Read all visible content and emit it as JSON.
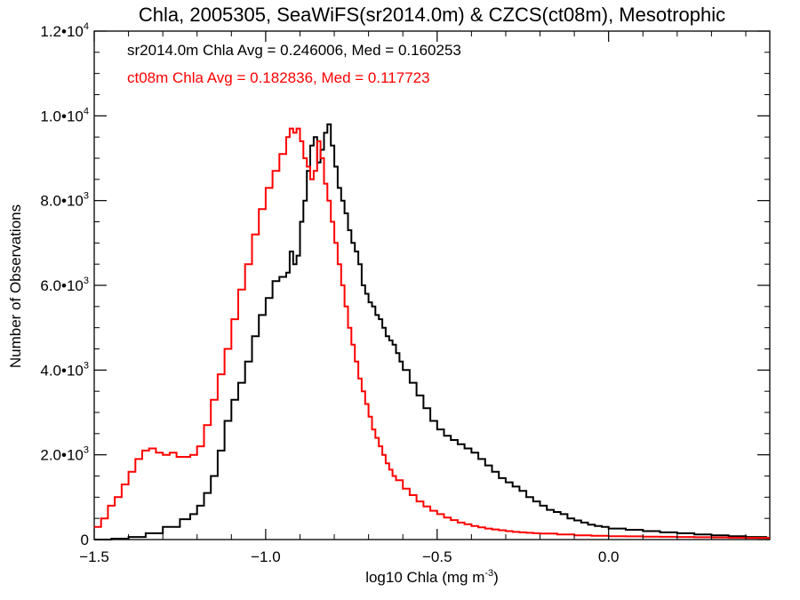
{
  "chart_data": {
    "type": "line",
    "title": "Chla, 2005305, SeaWiFS(sr2014.0m) & CZCS(ct08m), Mesotrophic",
    "xlabel": "log10 Chla (mg m",
    "xlabel_sup": "-3",
    "xlabel_suffix": ")",
    "ylabel": "Number of Observations",
    "xlim": [
      -1.5,
      0.47
    ],
    "ylim": [
      0,
      12000
    ],
    "x_ticks": [
      {
        "value": -1.5,
        "label": "−1.5"
      },
      {
        "value": -1.0,
        "label": "−1.0"
      },
      {
        "value": -0.5,
        "label": "−0.5"
      },
      {
        "value": 0.0,
        "label": "0.0"
      }
    ],
    "y_ticks": [
      {
        "value": 0,
        "mant": "0",
        "exp": ""
      },
      {
        "value": 2000,
        "mant": "2.0•10",
        "exp": "3"
      },
      {
        "value": 4000,
        "mant": "4.0•10",
        "exp": "3"
      },
      {
        "value": 6000,
        "mant": "6.0•10",
        "exp": "3"
      },
      {
        "value": 8000,
        "mant": "8.0•10",
        "exp": "3"
      },
      {
        "value": 10000,
        "mant": "1.0•10",
        "exp": "4"
      },
      {
        "value": 12000,
        "mant": "1.2•10",
        "exp": "4"
      }
    ],
    "grid": false,
    "legend_position": "top-left",
    "series": [
      {
        "name": "sr2014.0m",
        "color": "#000000",
        "stats_text": "sr2014.0m Chla Avg = 0.246006, Med = 0.160253",
        "points": [
          [
            -1.5,
            0
          ],
          [
            -1.45,
            20
          ],
          [
            -1.4,
            60
          ],
          [
            -1.35,
            150
          ],
          [
            -1.3,
            300
          ],
          [
            -1.25,
            480
          ],
          [
            -1.22,
            600
          ],
          [
            -1.2,
            800
          ],
          [
            -1.18,
            1100
          ],
          [
            -1.16,
            1500
          ],
          [
            -1.14,
            2100
          ],
          [
            -1.12,
            2800
          ],
          [
            -1.1,
            3300
          ],
          [
            -1.08,
            3700
          ],
          [
            -1.06,
            4200
          ],
          [
            -1.04,
            4800
          ],
          [
            -1.02,
            5300
          ],
          [
            -1.0,
            5700
          ],
          [
            -0.98,
            6100
          ],
          [
            -0.96,
            6200
          ],
          [
            -0.94,
            6300
          ],
          [
            -0.93,
            6800
          ],
          [
            -0.92,
            6500
          ],
          [
            -0.91,
            6700
          ],
          [
            -0.9,
            7500
          ],
          [
            -0.89,
            8000
          ],
          [
            -0.88,
            8700
          ],
          [
            -0.87,
            9300
          ],
          [
            -0.86,
            9500
          ],
          [
            -0.85,
            8900
          ],
          [
            -0.84,
            9200
          ],
          [
            -0.83,
            9600
          ],
          [
            -0.82,
            9800
          ],
          [
            -0.81,
            9300
          ],
          [
            -0.8,
            8800
          ],
          [
            -0.79,
            8300
          ],
          [
            -0.78,
            8000
          ],
          [
            -0.77,
            7700
          ],
          [
            -0.76,
            7300
          ],
          [
            -0.75,
            7000
          ],
          [
            -0.74,
            6800
          ],
          [
            -0.73,
            6500
          ],
          [
            -0.72,
            6000
          ],
          [
            -0.71,
            5800
          ],
          [
            -0.7,
            5600
          ],
          [
            -0.69,
            5500
          ],
          [
            -0.68,
            5300
          ],
          [
            -0.67,
            5200
          ],
          [
            -0.66,
            5000
          ],
          [
            -0.65,
            4800
          ],
          [
            -0.64,
            4700
          ],
          [
            -0.63,
            4600
          ],
          [
            -0.62,
            4400
          ],
          [
            -0.61,
            4200
          ],
          [
            -0.6,
            4000
          ],
          [
            -0.58,
            3700
          ],
          [
            -0.56,
            3400
          ],
          [
            -0.54,
            3100
          ],
          [
            -0.52,
            2800
          ],
          [
            -0.5,
            2600
          ],
          [
            -0.48,
            2450
          ],
          [
            -0.46,
            2350
          ],
          [
            -0.44,
            2250
          ],
          [
            -0.42,
            2150
          ],
          [
            -0.4,
            2050
          ],
          [
            -0.38,
            1900
          ],
          [
            -0.36,
            1750
          ],
          [
            -0.34,
            1600
          ],
          [
            -0.32,
            1450
          ],
          [
            -0.3,
            1350
          ],
          [
            -0.28,
            1250
          ],
          [
            -0.26,
            1150
          ],
          [
            -0.24,
            1000
          ],
          [
            -0.22,
            900
          ],
          [
            -0.2,
            800
          ],
          [
            -0.18,
            700
          ],
          [
            -0.16,
            650
          ],
          [
            -0.14,
            600
          ],
          [
            -0.12,
            500
          ],
          [
            -0.1,
            450
          ],
          [
            -0.08,
            400
          ],
          [
            -0.06,
            350
          ],
          [
            -0.04,
            320
          ],
          [
            -0.02,
            300
          ],
          [
            0.0,
            260
          ],
          [
            0.05,
            230
          ],
          [
            0.1,
            200
          ],
          [
            0.15,
            170
          ],
          [
            0.2,
            150
          ],
          [
            0.25,
            120
          ],
          [
            0.3,
            100
          ],
          [
            0.35,
            80
          ],
          [
            0.4,
            60
          ],
          [
            0.46,
            40
          ]
        ]
      },
      {
        "name": "ct08m",
        "color": "#ff0000",
        "stats_text": "ct08m Chla Avg = 0.182836, Med = 0.117723",
        "points": [
          [
            -1.5,
            300
          ],
          [
            -1.48,
            500
          ],
          [
            -1.46,
            800
          ],
          [
            -1.44,
            1000
          ],
          [
            -1.42,
            1300
          ],
          [
            -1.4,
            1600
          ],
          [
            -1.38,
            1900
          ],
          [
            -1.36,
            2100
          ],
          [
            -1.34,
            2150
          ],
          [
            -1.32,
            2050
          ],
          [
            -1.3,
            2000
          ],
          [
            -1.28,
            2050
          ],
          [
            -1.26,
            1950
          ],
          [
            -1.24,
            1950
          ],
          [
            -1.22,
            2000
          ],
          [
            -1.2,
            2200
          ],
          [
            -1.18,
            2700
          ],
          [
            -1.16,
            3300
          ],
          [
            -1.14,
            3900
          ],
          [
            -1.12,
            4500
          ],
          [
            -1.1,
            5200
          ],
          [
            -1.08,
            5900
          ],
          [
            -1.06,
            6500
          ],
          [
            -1.04,
            7200
          ],
          [
            -1.02,
            7800
          ],
          [
            -1.0,
            8300
          ],
          [
            -0.98,
            8700
          ],
          [
            -0.96,
            9100
          ],
          [
            -0.94,
            9500
          ],
          [
            -0.93,
            9700
          ],
          [
            -0.92,
            9600
          ],
          [
            -0.91,
            9700
          ],
          [
            -0.9,
            9400
          ],
          [
            -0.89,
            9000
          ],
          [
            -0.88,
            8800
          ],
          [
            -0.87,
            8500
          ],
          [
            -0.86,
            8700
          ],
          [
            -0.85,
            9400
          ],
          [
            -0.84,
            9000
          ],
          [
            -0.83,
            8400
          ],
          [
            -0.82,
            8000
          ],
          [
            -0.81,
            7500
          ],
          [
            -0.8,
            7000
          ],
          [
            -0.79,
            6500
          ],
          [
            -0.78,
            6000
          ],
          [
            -0.77,
            5500
          ],
          [
            -0.76,
            5000
          ],
          [
            -0.75,
            4600
          ],
          [
            -0.74,
            4200
          ],
          [
            -0.73,
            3800
          ],
          [
            -0.72,
            3500
          ],
          [
            -0.71,
            3200
          ],
          [
            -0.7,
            2900
          ],
          [
            -0.69,
            2600
          ],
          [
            -0.68,
            2400
          ],
          [
            -0.67,
            2200
          ],
          [
            -0.66,
            2000
          ],
          [
            -0.65,
            1800
          ],
          [
            -0.64,
            1650
          ],
          [
            -0.63,
            1500
          ],
          [
            -0.62,
            1400
          ],
          [
            -0.6,
            1200
          ],
          [
            -0.58,
            1050
          ],
          [
            -0.56,
            900
          ],
          [
            -0.54,
            780
          ],
          [
            -0.52,
            680
          ],
          [
            -0.5,
            600
          ],
          [
            -0.48,
            520
          ],
          [
            -0.46,
            460
          ],
          [
            -0.44,
            400
          ],
          [
            -0.42,
            360
          ],
          [
            -0.4,
            320
          ],
          [
            -0.38,
            290
          ],
          [
            -0.36,
            260
          ],
          [
            -0.34,
            240
          ],
          [
            -0.32,
            220
          ],
          [
            -0.3,
            200
          ],
          [
            -0.28,
            180
          ],
          [
            -0.26,
            170
          ],
          [
            -0.24,
            160
          ],
          [
            -0.22,
            150
          ],
          [
            -0.2,
            140
          ],
          [
            -0.15,
            120
          ],
          [
            -0.1,
            100
          ],
          [
            -0.05,
            90
          ],
          [
            0.0,
            80
          ],
          [
            0.05,
            75
          ],
          [
            0.1,
            70
          ],
          [
            0.15,
            65
          ],
          [
            0.2,
            60
          ],
          [
            0.25,
            55
          ],
          [
            0.3,
            50
          ],
          [
            0.35,
            45
          ],
          [
            0.4,
            40
          ],
          [
            0.46,
            35
          ]
        ]
      }
    ]
  }
}
